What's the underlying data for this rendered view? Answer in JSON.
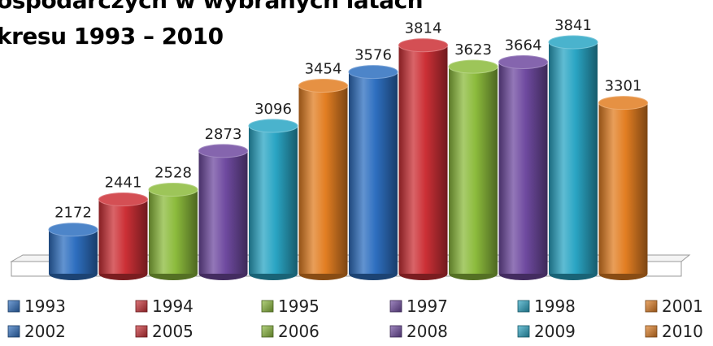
{
  "title": {
    "line1": "ospodarczych  w wybranych latach",
    "line2": "kresu 1993 – 2010"
  },
  "chart_data": {
    "type": "bar",
    "title": "ospodarczych  w wybranych latach kresu 1993 – 2010",
    "xlabel": "",
    "ylabel": "",
    "ylim": [
      0,
      3841
    ],
    "grid": false,
    "legend_position": "bottom",
    "style": "3d-cylinder",
    "series": [
      {
        "name": "1993",
        "value": 2172,
        "color": "#2e6fc0"
      },
      {
        "name": "1994",
        "value": 2441,
        "color": "#cc3036"
      },
      {
        "name": "1995",
        "value": 2528,
        "color": "#8cbb3c"
      },
      {
        "name": "1997",
        "value": 2873,
        "color": "#6f4aa0"
      },
      {
        "name": "1998",
        "value": 3096,
        "color": "#2aa5c4"
      },
      {
        "name": "2001",
        "value": 3454,
        "color": "#e27e22"
      },
      {
        "name": "2002",
        "value": 3576,
        "color": "#2e6fc0"
      },
      {
        "name": "2005",
        "value": 3814,
        "color": "#cc3036"
      },
      {
        "name": "2006",
        "value": 3623,
        "color": "#8cbb3c"
      },
      {
        "name": "2008",
        "value": 3664,
        "color": "#6f4aa0"
      },
      {
        "name": "2009",
        "value": 3841,
        "color": "#2aa5c4"
      },
      {
        "name": "2010",
        "value": 3301,
        "color": "#e27e22"
      }
    ]
  }
}
